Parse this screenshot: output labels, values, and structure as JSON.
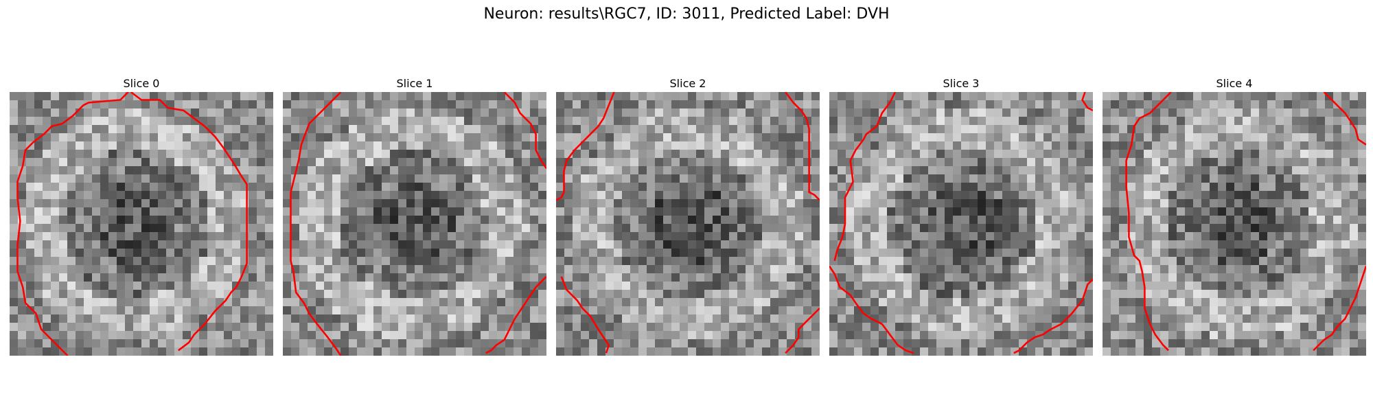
{
  "figure": {
    "title": "Neuron: results\\RGC7, ID: 3011, Predicted Label: DVH"
  },
  "colors": {
    "contour": "#ff0000",
    "background": "#ffffff"
  },
  "slices": [
    {
      "title": "Slice 0",
      "contours": [
        [
          [
            0.22,
            1.0
          ],
          [
            0.12,
            0.9
          ],
          [
            0.1,
            0.84
          ],
          [
            0.06,
            0.8
          ],
          [
            0.05,
            0.74
          ],
          [
            0.03,
            0.68
          ],
          [
            0.03,
            0.58
          ],
          [
            0.04,
            0.49
          ],
          [
            0.03,
            0.4
          ],
          [
            0.03,
            0.34
          ],
          [
            0.05,
            0.28
          ],
          [
            0.06,
            0.22
          ],
          [
            0.09,
            0.19
          ],
          [
            0.13,
            0.16
          ],
          [
            0.16,
            0.13
          ],
          [
            0.2,
            0.12
          ],
          [
            0.24,
            0.09
          ],
          [
            0.28,
            0.05
          ],
          [
            0.3,
            0.04
          ],
          [
            0.42,
            0.03
          ],
          [
            0.45,
            0.0
          ]
        ],
        [
          [
            0.46,
            0.0
          ],
          [
            0.5,
            0.03
          ],
          [
            0.57,
            0.03
          ],
          [
            0.6,
            0.06
          ],
          [
            0.66,
            0.07
          ],
          [
            0.7,
            0.1
          ],
          [
            0.74,
            0.13
          ],
          [
            0.78,
            0.17
          ],
          [
            0.81,
            0.21
          ],
          [
            0.85,
            0.27
          ],
          [
            0.88,
            0.32
          ],
          [
            0.9,
            0.35
          ],
          [
            0.9,
            0.45
          ],
          [
            0.9,
            0.58
          ],
          [
            0.9,
            0.65
          ],
          [
            0.88,
            0.7
          ],
          [
            0.86,
            0.74
          ],
          [
            0.84,
            0.76
          ],
          [
            0.82,
            0.79
          ],
          [
            0.78,
            0.83
          ],
          [
            0.74,
            0.88
          ],
          [
            0.7,
            0.92
          ],
          [
            0.68,
            0.95
          ],
          [
            0.64,
            0.98
          ]
        ]
      ]
    },
    {
      "title": "Slice 1",
      "contours": [
        [
          [
            0.22,
            0.0
          ],
          [
            0.18,
            0.04
          ],
          [
            0.14,
            0.08
          ],
          [
            0.1,
            0.12
          ],
          [
            0.07,
            0.2
          ],
          [
            0.06,
            0.26
          ],
          [
            0.05,
            0.3
          ],
          [
            0.03,
            0.38
          ],
          [
            0.03,
            0.52
          ],
          [
            0.03,
            0.64
          ],
          [
            0.04,
            0.68
          ],
          [
            0.05,
            0.76
          ],
          [
            0.08,
            0.8
          ],
          [
            0.1,
            0.84
          ],
          [
            0.13,
            0.88
          ],
          [
            0.17,
            0.93
          ],
          [
            0.2,
            0.97
          ],
          [
            0.22,
            1.0
          ]
        ],
        [
          [
            0.84,
            0.0
          ],
          [
            0.88,
            0.04
          ],
          [
            0.9,
            0.08
          ],
          [
            0.94,
            0.12
          ],
          [
            0.96,
            0.16
          ],
          [
            0.96,
            0.22
          ],
          [
            0.98,
            0.26
          ],
          [
            1.0,
            0.29
          ]
        ],
        [
          [
            1.0,
            0.7
          ],
          [
            0.96,
            0.74
          ],
          [
            0.92,
            0.8
          ],
          [
            0.88,
            0.86
          ],
          [
            0.86,
            0.9
          ],
          [
            0.84,
            0.94
          ],
          [
            0.81,
            0.96
          ],
          [
            0.79,
            0.98
          ],
          [
            0.77,
            0.99
          ]
        ]
      ]
    },
    {
      "title": "Slice 2",
      "contours": [
        [
          [
            0.22,
            0.0
          ],
          [
            0.2,
            0.05
          ],
          [
            0.18,
            0.1
          ],
          [
            0.16,
            0.13
          ],
          [
            0.13,
            0.16
          ],
          [
            0.1,
            0.19
          ],
          [
            0.07,
            0.22
          ],
          [
            0.04,
            0.26
          ],
          [
            0.03,
            0.3
          ],
          [
            0.03,
            0.38
          ],
          [
            0.02,
            0.4
          ],
          [
            0.0,
            0.41
          ]
        ],
        [
          [
            0.87,
            0.0
          ],
          [
            0.9,
            0.04
          ],
          [
            0.93,
            0.07
          ],
          [
            0.95,
            0.1
          ],
          [
            0.96,
            0.14
          ],
          [
            0.96,
            0.24
          ],
          [
            0.96,
            0.38
          ],
          [
            0.98,
            0.39
          ],
          [
            1.0,
            0.41
          ]
        ],
        [
          [
            0.02,
            0.7
          ],
          [
            0.04,
            0.75
          ],
          [
            0.08,
            0.79
          ],
          [
            0.1,
            0.82
          ],
          [
            0.13,
            0.85
          ],
          [
            0.16,
            0.9
          ],
          [
            0.18,
            0.93
          ],
          [
            0.2,
            0.96
          ],
          [
            0.19,
            0.99
          ]
        ],
        [
          [
            1.0,
            0.82
          ],
          [
            0.96,
            0.86
          ],
          [
            0.92,
            0.9
          ],
          [
            0.92,
            0.93
          ],
          [
            0.9,
            0.96
          ],
          [
            0.87,
            0.99
          ]
        ]
      ]
    },
    {
      "title": "Slice 3",
      "contours": [
        [
          [
            0.25,
            0.0
          ],
          [
            0.23,
            0.04
          ],
          [
            0.2,
            0.08
          ],
          [
            0.18,
            0.13
          ],
          [
            0.14,
            0.16
          ],
          [
            0.13,
            0.18
          ],
          [
            0.1,
            0.22
          ],
          [
            0.08,
            0.26
          ],
          [
            0.09,
            0.34
          ],
          [
            0.07,
            0.38
          ],
          [
            0.06,
            0.4
          ],
          [
            0.06,
            0.5
          ],
          [
            0.05,
            0.55
          ],
          [
            0.03,
            0.6
          ],
          [
            0.02,
            0.64
          ]
        ],
        [
          [
            0.97,
            0.0
          ],
          [
            0.96,
            0.03
          ],
          [
            0.98,
            0.06
          ],
          [
            1.0,
            0.07
          ]
        ],
        [
          [
            0.0,
            0.66
          ],
          [
            0.02,
            0.69
          ],
          [
            0.04,
            0.74
          ],
          [
            0.08,
            0.77
          ],
          [
            0.1,
            0.8
          ],
          [
            0.13,
            0.84
          ],
          [
            0.16,
            0.86
          ],
          [
            0.2,
            0.88
          ],
          [
            0.23,
            0.92
          ],
          [
            0.26,
            0.96
          ],
          [
            0.29,
            0.98
          ],
          [
            0.32,
            0.99
          ]
        ],
        [
          [
            1.0,
            0.71
          ],
          [
            0.98,
            0.73
          ],
          [
            0.96,
            0.79
          ],
          [
            0.92,
            0.84
          ],
          [
            0.88,
            0.88
          ],
          [
            0.84,
            0.9
          ],
          [
            0.81,
            0.92
          ],
          [
            0.78,
            0.93
          ],
          [
            0.75,
            0.95
          ],
          [
            0.72,
            0.98
          ],
          [
            0.7,
            0.99
          ]
        ]
      ]
    },
    {
      "title": "Slice 4",
      "contours": [
        [
          [
            0.26,
            0.0
          ],
          [
            0.22,
            0.04
          ],
          [
            0.18,
            0.08
          ],
          [
            0.14,
            0.1
          ],
          [
            0.12,
            0.13
          ],
          [
            0.11,
            0.2
          ],
          [
            0.09,
            0.26
          ],
          [
            0.09,
            0.36
          ],
          [
            0.1,
            0.46
          ],
          [
            0.1,
            0.55
          ],
          [
            0.12,
            0.62
          ],
          [
            0.14,
            0.64
          ],
          [
            0.15,
            0.68
          ],
          [
            0.16,
            0.74
          ],
          [
            0.16,
            0.82
          ],
          [
            0.18,
            0.88
          ],
          [
            0.2,
            0.92
          ],
          [
            0.23,
            0.96
          ],
          [
            0.25,
            0.98
          ]
        ],
        [
          [
            0.84,
            0.0
          ],
          [
            0.88,
            0.04
          ],
          [
            0.92,
            0.08
          ],
          [
            0.94,
            0.11
          ],
          [
            0.96,
            0.14
          ],
          [
            0.97,
            0.18
          ],
          [
            1.0,
            0.2
          ]
        ],
        [
          [
            1.0,
            0.66
          ],
          [
            0.98,
            0.72
          ],
          [
            0.96,
            0.78
          ],
          [
            0.94,
            0.82
          ],
          [
            0.92,
            0.86
          ],
          [
            0.89,
            0.89
          ],
          [
            0.87,
            0.92
          ],
          [
            0.84,
            0.94
          ],
          [
            0.81,
            0.97
          ],
          [
            0.8,
            0.98
          ]
        ]
      ]
    }
  ]
}
